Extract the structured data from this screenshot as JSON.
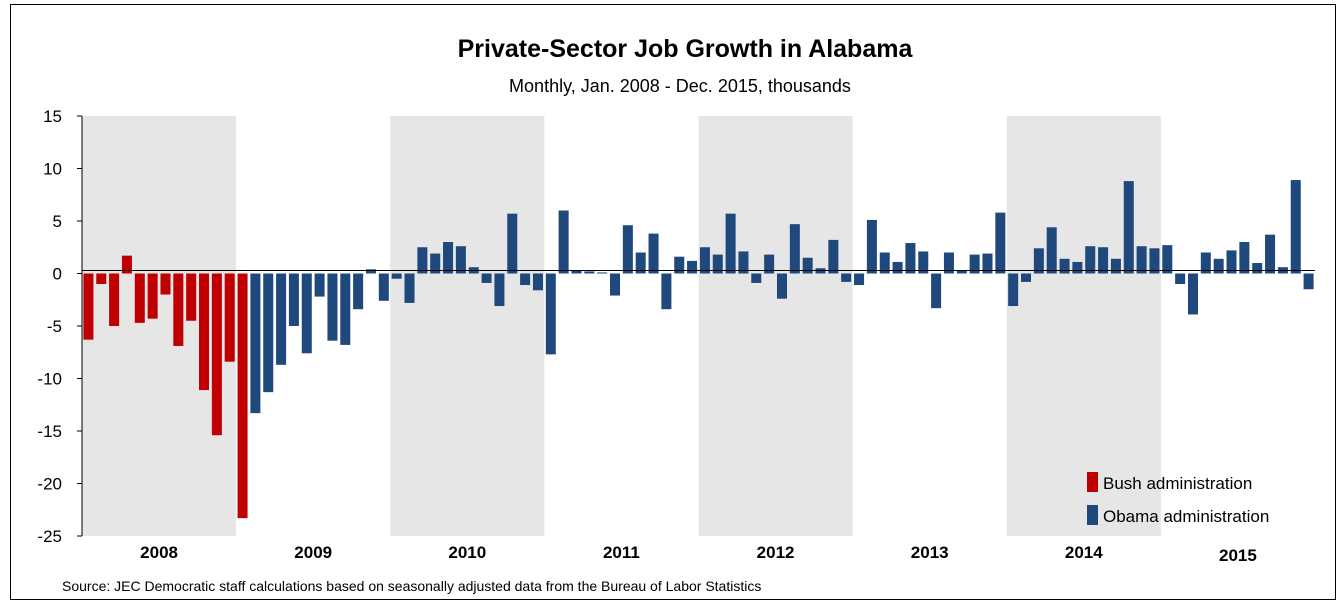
{
  "chart_data": {
    "type": "bar",
    "title": "Private-Sector Job Growth in Alabama",
    "subtitle": "Monthly, Jan. 2008 - Dec. 2015, thousands",
    "xlabel": "",
    "ylabel": "",
    "ylim": [
      -25,
      15
    ],
    "yticks": [
      15,
      10,
      5,
      0,
      -5,
      -10,
      -15,
      -20,
      -25
    ],
    "ytick_labels": [
      "15",
      "10",
      "5",
      "0",
      "-5",
      "-10",
      "-15",
      "-20",
      "-25"
    ],
    "years": [
      "2008",
      "2009",
      "2010",
      "2011",
      "2012",
      "2013",
      "2014",
      "2015"
    ],
    "shaded_years": [
      "2008",
      "2010",
      "2012",
      "2014"
    ],
    "grid": false,
    "legend_position": "bottom-right",
    "series": [
      {
        "name": "Bush administration",
        "color": "#C00000",
        "start_index": 0,
        "values": [
          -6.3,
          -1.0,
          -5.0,
          1.7,
          -4.7,
          -4.3,
          -2.0,
          -6.9,
          -4.5,
          -11.1,
          -15.4,
          -8.4,
          -23.3
        ]
      },
      {
        "name": "Obama administration",
        "color": "#1F497D",
        "start_index": 13,
        "values": [
          -13.3,
          -11.3,
          -8.7,
          -5.0,
          -7.6,
          -2.2,
          -6.4,
          -6.8,
          -3.4,
          0.4,
          -2.6,
          -0.5,
          -2.8,
          2.5,
          1.9,
          3.0,
          2.6,
          0.6,
          -0.9,
          -3.1,
          5.7,
          -1.1,
          -1.6,
          -7.7,
          6.0,
          0.3,
          0.2,
          0.1,
          -2.1,
          4.6,
          2.0,
          3.8,
          -3.4,
          1.6,
          1.2,
          2.5,
          1.8,
          5.7,
          2.1,
          -0.9,
          1.8,
          -2.4,
          4.7,
          1.5,
          0.5,
          3.2,
          -0.8,
          -1.1,
          5.1,
          2.0,
          1.1,
          2.9,
          2.1,
          -3.3,
          2.0,
          0.3,
          1.8,
          1.9,
          5.8,
          -3.1,
          -0.8,
          2.4,
          4.4,
          1.4,
          1.1,
          2.6,
          2.5,
          1.4,
          8.8,
          2.6,
          2.4,
          2.7,
          -1.0,
          -3.9,
          2.0,
          1.4,
          2.2,
          3.0,
          1.0,
          3.7,
          0.6,
          8.9,
          -1.5
        ]
      }
    ],
    "source": "Source: JEC Democratic staff calculations based on seasonally adjusted data from the Bureau of Labor Statistics"
  }
}
